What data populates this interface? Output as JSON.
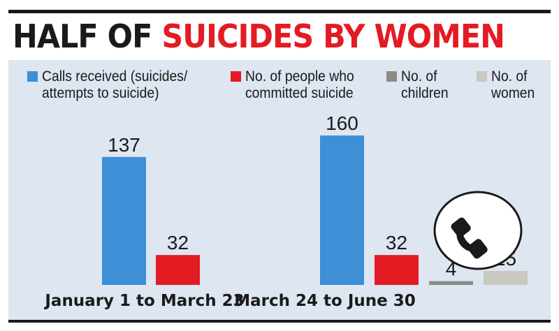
{
  "title": {
    "part1": "HALF OF ",
    "part2": "SUICIDES BY WOMEN",
    "color_dark": "#1a1a1a",
    "color_accent": "#e31b23"
  },
  "panel_background": "#dde6f1",
  "icon": "phone-icon",
  "chart_data": {
    "type": "bar",
    "title": "HALF OF SUICIDES BY WOMEN",
    "categories": [
      "January 1 to March 23",
      "March 24 to June 30"
    ],
    "series": [
      {
        "name": "Calls received (suicides/ attempts to suicide)",
        "color": "#3d8fd6",
        "values": [
          137,
          160
        ]
      },
      {
        "name": "No. of people who committed suicide",
        "color": "#e31b23",
        "values": [
          32,
          32
        ]
      },
      {
        "name": "No. of children",
        "color": "#8b8b85",
        "values": [
          null,
          4
        ]
      },
      {
        "name": "No. of women",
        "color": "#c9c8c1",
        "values": [
          null,
          15
        ]
      }
    ],
    "legend_lines": [
      "Calls received (suicides/\nattempts to suicide)",
      "No. of people who\ncommitted suicide",
      "No. of\nchildren",
      "No. of\nwomen"
    ],
    "ylim": [
      0,
      160
    ],
    "xlabel": "",
    "ylabel": "",
    "grid": false,
    "legend_position": "top"
  }
}
